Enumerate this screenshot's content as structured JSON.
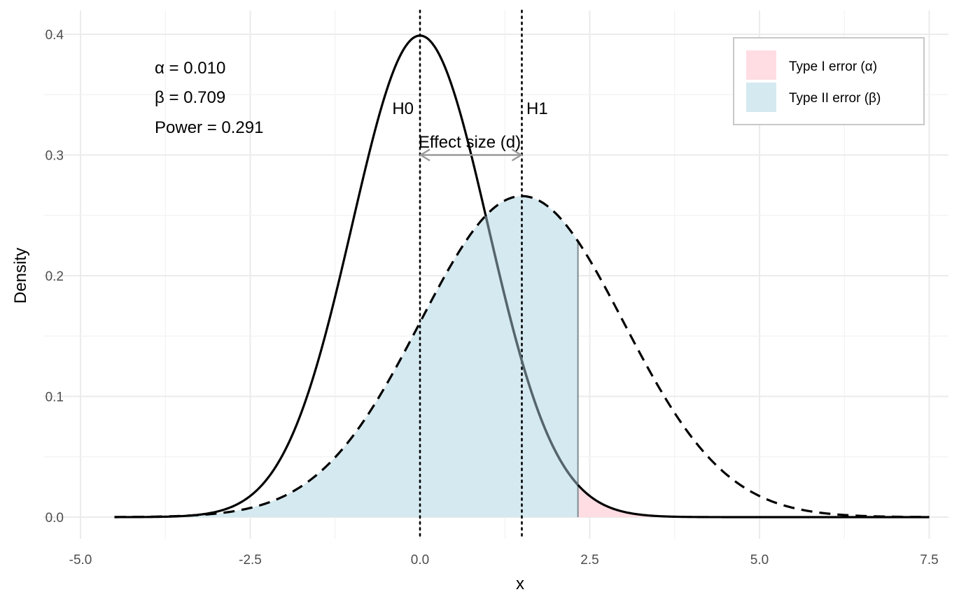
{
  "chart_data": {
    "type": "area",
    "xlabel": "x",
    "ylabel": "Density",
    "xlim": [
      -5.0,
      7.8
    ],
    "ylim": [
      -0.017,
      0.418
    ],
    "x_ticks": [
      -5.0,
      -2.5,
      0.0,
      2.5,
      5.0,
      7.5
    ],
    "x_tick_labels": [
      "-5.0",
      "-2.5",
      "0.0",
      "2.5",
      "5.0",
      "7.5"
    ],
    "y_ticks": [
      0.0,
      0.1,
      0.2,
      0.3,
      0.4
    ],
    "y_tick_labels": [
      "0.0",
      "0.1",
      "0.2",
      "0.3",
      "0.4"
    ],
    "grid": true,
    "series": [
      {
        "name": "H0",
        "distribution": "normal",
        "mean": 0.0,
        "sd": 1.0,
        "x_range": [
          -4.5,
          7.5
        ],
        "line_style": "solid",
        "color": "#000000"
      },
      {
        "name": "H1",
        "distribution": "normal",
        "mean": 1.5,
        "sd": 1.5,
        "x_range": [
          -4.5,
          7.5
        ],
        "line_style": "dashed",
        "color": "#000000"
      }
    ],
    "critical_value": 2.326,
    "shaded_regions": [
      {
        "name": "Type I error (α)",
        "under": "H0",
        "from": 2.326,
        "to": 7.5,
        "color": "#ffdde3"
      },
      {
        "name": "Type II error (β)",
        "under": "H1",
        "from": -4.5,
        "to": 2.326,
        "color": "#d5e9f0"
      }
    ],
    "vertical_lines": [
      {
        "x": 0.0,
        "style": "dotted",
        "label": "H0"
      },
      {
        "x": 1.5,
        "style": "dotted",
        "label": "H1"
      }
    ],
    "effect_arrow": {
      "from": 0.0,
      "to": 1.5,
      "y": 0.3,
      "label": "Effect size (d)",
      "color": "#9a9a9a"
    },
    "stats": {
      "alpha_text": "α = 0.010",
      "beta_text": "β = 0.709",
      "power_text": "Power = 0.291"
    },
    "legend": {
      "position": "top-right",
      "items": [
        {
          "label": "Type I error (α)",
          "color": "#ffdde3"
        },
        {
          "label": "Type II error (β)",
          "color": "#d5e9f0"
        }
      ]
    }
  }
}
